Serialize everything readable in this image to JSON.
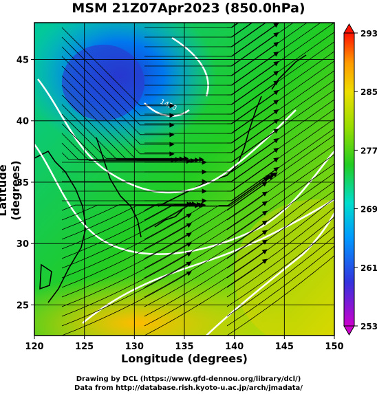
{
  "title": "MSM 21Z07Apr2023 (850.0hPa)",
  "xlabel": "Longitude (degrees)",
  "ylabel": "Latitude  (degrees)",
  "credits": {
    "line1": "Drawing by DCL (https://www.gfd-dennou.org/library/dcl/)",
    "line2": "Data from http://database.rish.kyoto-u.ac.jp/arch/jmadata/"
  },
  "map": {
    "lon_range": [
      120,
      150
    ],
    "lat_range": [
      22.5,
      48
    ],
    "lon_ticks": [
      "120",
      "125",
      "130",
      "135",
      "140",
      "145",
      "150"
    ],
    "lat_ticks": [
      "25",
      "30",
      "35",
      "40",
      "45"
    ],
    "contour_label": "1450"
  },
  "colorbar": {
    "ticks": [
      "293",
      "285",
      "277",
      "269",
      "261",
      "253"
    ],
    "range": [
      253,
      293
    ],
    "colors": [
      "#cc00cc",
      "#3333dd",
      "#00a8ff",
      "#00ddaa",
      "#22cc22",
      "#99dd00",
      "#eeee00",
      "#ffcc00",
      "#ff7700",
      "#ff0000"
    ]
  }
}
